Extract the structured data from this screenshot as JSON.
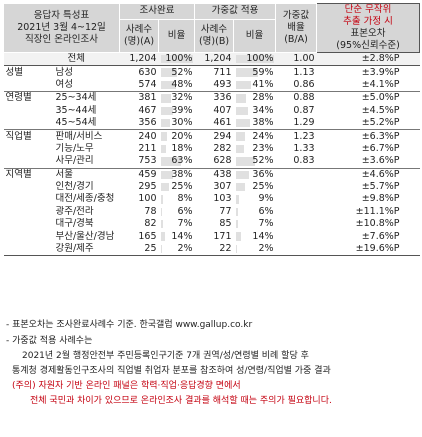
{
  "header": {
    "col1_lines": [
      "응답자 특성표",
      "2021년 3월 4~12일",
      "직장인 온라인조사"
    ],
    "group_survey": "조사완료",
    "group_weighted": "가중값 적용",
    "cases_label": [
      "사례수",
      "(명)(A)"
    ],
    "ratio_label": "비율",
    "wcases_label": [
      "사례수",
      "(명)(B)"
    ],
    "wratio_label": "비율",
    "multiplier_label": [
      "가중값",
      "배율",
      "(B/A)"
    ],
    "error_label": [
      "단순 무작위",
      "추출 가정 시",
      "표본오차",
      "(95%신뢰수준)"
    ]
  },
  "rows": [
    {
      "group": "",
      "label": "전체",
      "n": "1,204",
      "pct": "100%",
      "wn": "1,204",
      "wpct": "100%",
      "mult": "1.00",
      "err": "±2.8%P",
      "fill": 1.0,
      "wfill": 1.0
    },
    {
      "group": "성별",
      "label": "남성",
      "n": "630",
      "pct": "52%",
      "wn": "711",
      "wpct": "59%",
      "mult": "1.13",
      "err": "±3.9%P",
      "fill": 0.52,
      "wfill": 0.59
    },
    {
      "group": "",
      "label": "여성",
      "n": "574",
      "pct": "48%",
      "wn": "493",
      "wpct": "41%",
      "mult": "0.86",
      "err": "±4.1%P",
      "fill": 0.48,
      "wfill": 0.41
    },
    {
      "group": "연령별",
      "label": "25~34세",
      "n": "381",
      "pct": "32%",
      "wn": "336",
      "wpct": "28%",
      "mult": "0.88",
      "err": "±5.0%P",
      "fill": 0.32,
      "wfill": 0.28
    },
    {
      "group": "",
      "label": "35~44세",
      "n": "467",
      "pct": "39%",
      "wn": "407",
      "wpct": "34%",
      "mult": "0.87",
      "err": "±4.5%P",
      "fill": 0.39,
      "wfill": 0.34
    },
    {
      "group": "",
      "label": "45~54세",
      "n": "356",
      "pct": "30%",
      "wn": "461",
      "wpct": "38%",
      "mult": "1.29",
      "err": "±5.2%P",
      "fill": 0.3,
      "wfill": 0.38
    },
    {
      "group": "직업별",
      "label": "판매/서비스",
      "n": "240",
      "pct": "20%",
      "wn": "294",
      "wpct": "24%",
      "mult": "1.23",
      "err": "±6.3%P",
      "fill": 0.2,
      "wfill": 0.24
    },
    {
      "group": "",
      "label": "기능/노무",
      "n": "211",
      "pct": "18%",
      "wn": "282",
      "wpct": "23%",
      "mult": "1.33",
      "err": "±6.7%P",
      "fill": 0.18,
      "wfill": 0.23
    },
    {
      "group": "",
      "label": "사무/관리",
      "n": "753",
      "pct": "63%",
      "wn": "628",
      "wpct": "52%",
      "mult": "0.83",
      "err": "±3.6%P",
      "fill": 0.63,
      "wfill": 0.52
    },
    {
      "group": "지역별",
      "label": "서울",
      "n": "459",
      "pct": "38%",
      "wn": "438",
      "wpct": "36%",
      "mult": "",
      "err": "±4.6%P",
      "fill": 0.38,
      "wfill": 0.36
    },
    {
      "group": "",
      "label": "인천/경기",
      "n": "295",
      "pct": "25%",
      "wn": "307",
      "wpct": "25%",
      "mult": "",
      "err": "±5.7%P",
      "fill": 0.25,
      "wfill": 0.25
    },
    {
      "group": "",
      "label": "대전/세종/충청",
      "n": "100",
      "pct": "8%",
      "wn": "103",
      "wpct": "9%",
      "mult": "",
      "err": "±9.8%P",
      "fill": 0.08,
      "wfill": 0.09
    },
    {
      "group": "",
      "label": "광주/전라",
      "n": "78",
      "pct": "6%",
      "wn": "77",
      "wpct": "6%",
      "mult": "",
      "err": "±11.1%P",
      "fill": 0.06,
      "wfill": 0.06
    },
    {
      "group": "",
      "label": "대구/경북",
      "n": "82",
      "pct": "7%",
      "wn": "85",
      "wpct": "7%",
      "mult": "",
      "err": "±10.8%P",
      "fill": 0.07,
      "wfill": 0.07
    },
    {
      "group": "",
      "label": "부산/울산/경남",
      "n": "165",
      "pct": "14%",
      "wn": "171",
      "wpct": "14%",
      "mult": "",
      "err": "±7.6%P",
      "fill": 0.14,
      "wfill": 0.14
    },
    {
      "group": "",
      "label": "강원/제주",
      "n": "25",
      "pct": "2%",
      "wn": "22",
      "wpct": "2%",
      "mult": "",
      "err": "±19.6%P",
      "fill": 0.02,
      "wfill": 0.02
    }
  ],
  "notes": {
    "line1": "- 표본오차는 조사완료사례수 기준. 한국갤럽 www.gallup.co.kr",
    "line2": "- 가중값 적용 사례수는",
    "line3": "2021년 2월 행정안전부 주민등록인구기준 7개 권역/성/연령별 비례 할당 후",
    "line4": "통계청 경제활동인구조사의 직업별 취업자 분포를 참조하여 성/연령/직업별 가중 결과",
    "line5_red": "(주의)",
    "line5_rest": " 자원자 기반 온라인 패널은 학력·직업·응답경향 면에서",
    "line6": "전체 국민과 차이가 있으므로 온라인조사 결과를 해석할 때는 주의가 필요합니다."
  },
  "colors": {
    "header_bg": "#d6d6d6",
    "red": "#c4000f",
    "bar": "#e0e0e0"
  }
}
